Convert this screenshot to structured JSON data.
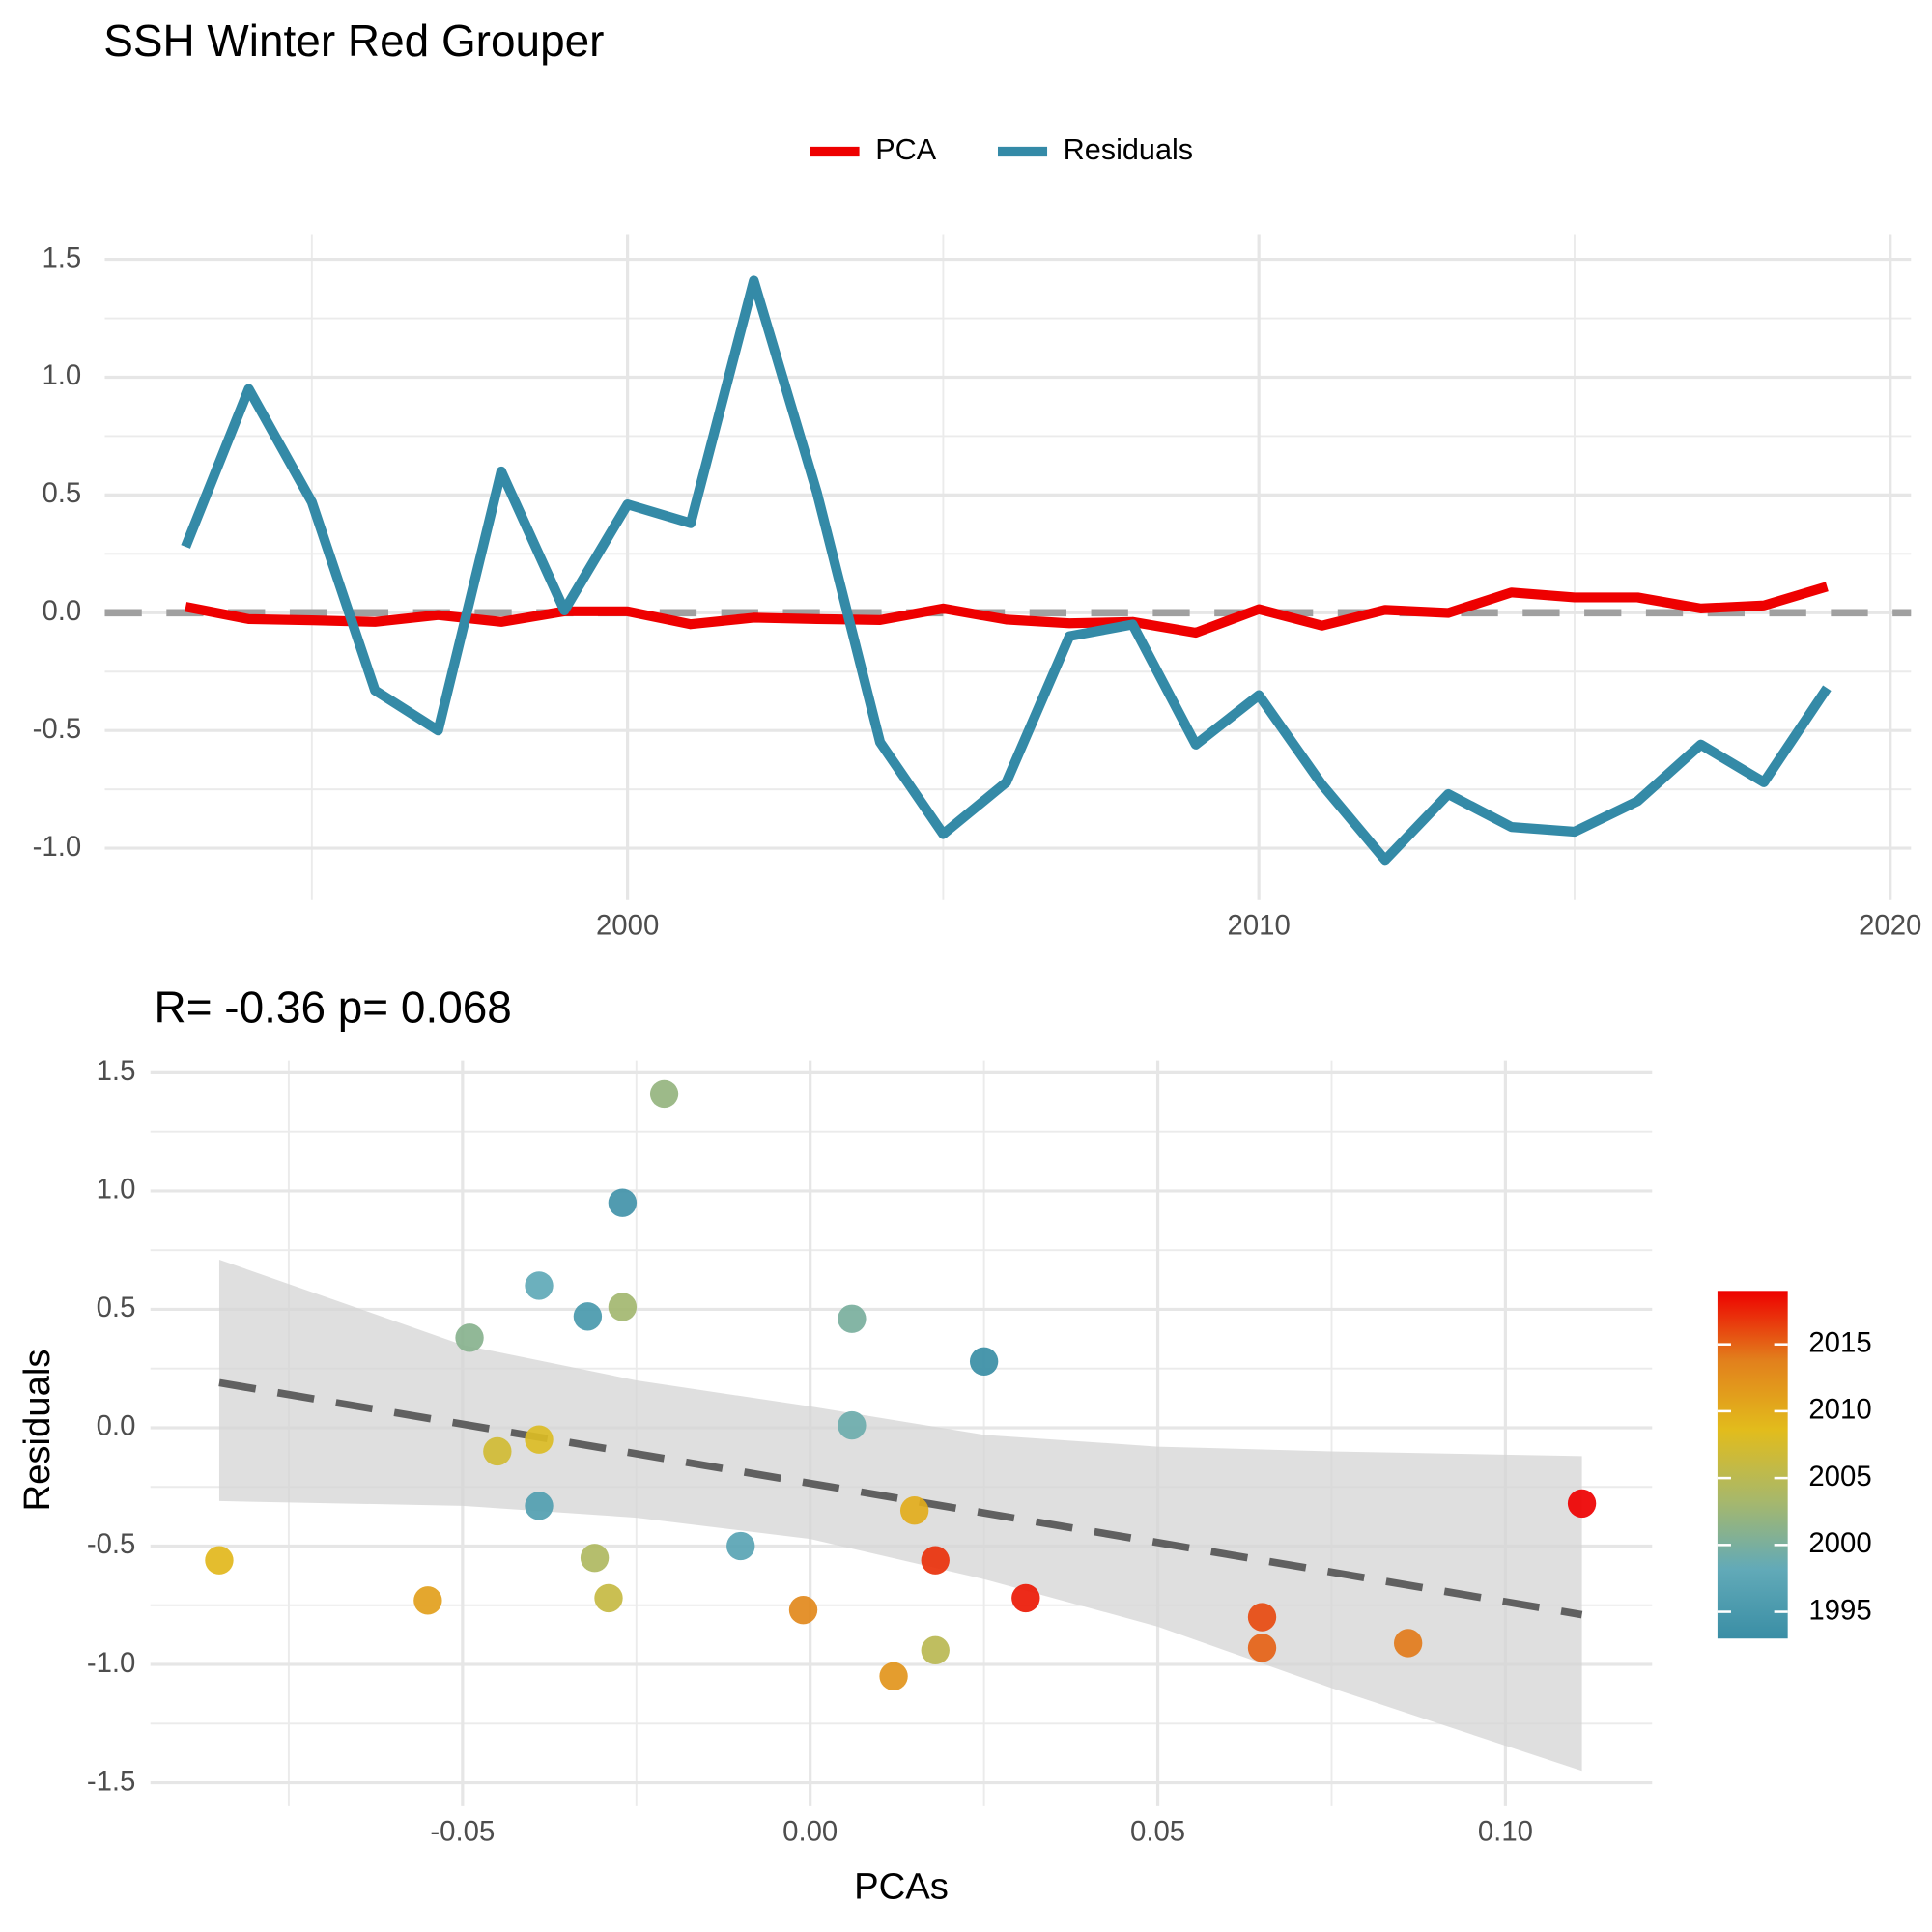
{
  "chart_data": [
    {
      "type": "line",
      "title": "SSH Winter Red Grouper",
      "x": [
        1993,
        1994,
        1995,
        1996,
        1997,
        1998,
        1999,
        2000,
        2001,
        2002,
        2003,
        2004,
        2005,
        2006,
        2007,
        2008,
        2009,
        2010,
        2011,
        2012,
        2013,
        2014,
        2015,
        2016,
        2017,
        2018,
        2019
      ],
      "series": [
        {
          "name": "PCA",
          "color": "#ee0000",
          "values": [
            0.025,
            -0.027,
            -0.032,
            -0.039,
            -0.01,
            -0.039,
            0.006,
            0.006,
            -0.049,
            -0.021,
            -0.027,
            -0.031,
            0.018,
            -0.029,
            -0.045,
            -0.039,
            -0.085,
            0.015,
            -0.055,
            0.012,
            -0.001,
            0.086,
            0.065,
            0.065,
            0.018,
            0.031,
            0.111
          ]
        },
        {
          "name": "Residuals",
          "color": "#348aa7",
          "values": [
            0.28,
            0.95,
            0.47,
            -0.33,
            -0.5,
            0.6,
            0.01,
            0.46,
            0.38,
            1.41,
            0.51,
            -0.55,
            -0.94,
            -0.72,
            -0.1,
            -0.05,
            -0.56,
            -0.35,
            -0.73,
            -1.05,
            -0.77,
            -0.91,
            -0.93,
            -0.8,
            -0.56,
            -0.72,
            -0.32
          ]
        }
      ],
      "xlim": [
        1991.72,
        2020.33
      ],
      "xticks": [
        2000,
        2010,
        2020
      ],
      "ylim": [
        -1.22,
        1.607
      ],
      "yticks": [
        {
          "value": -1,
          "label": "-1.0"
        },
        -0.5,
        {
          "value": 0,
          "label": "0.0"
        },
        0.5,
        {
          "value": 1,
          "label": "1.0"
        },
        1.5
      ],
      "hline": 0,
      "grid": true,
      "legend": "top"
    },
    {
      "type": "scatter",
      "subtitle": "R= -0.36  p= 0.068",
      "x_label": "PCAs",
      "y_label": "Residuals",
      "x": [
        0.025,
        -0.027,
        -0.032,
        -0.039,
        -0.01,
        -0.039,
        0.006,
        0.006,
        -0.049,
        -0.021,
        -0.027,
        -0.031,
        0.018,
        -0.029,
        -0.045,
        -0.039,
        -0.085,
        0.015,
        -0.055,
        0.012,
        -0.001,
        0.086,
        0.065,
        0.065,
        0.018,
        0.031,
        0.111
      ],
      "values": [
        0.28,
        0.95,
        0.47,
        -0.33,
        -0.5,
        0.6,
        0.01,
        0.46,
        0.38,
        1.41,
        0.51,
        -0.55,
        -0.94,
        -0.72,
        -0.1,
        -0.05,
        -0.56,
        -0.35,
        -0.73,
        -1.05,
        -0.77,
        -0.91,
        -0.93,
        -0.8,
        -0.56,
        -0.72,
        -0.32
      ],
      "color_values": [
        1993,
        1994,
        1995,
        1996,
        1997,
        1998,
        1999,
        2000,
        2001,
        2002,
        2003,
        2004,
        2005,
        2006,
        2007,
        2008,
        2009,
        2010,
        2011,
        2012,
        2013,
        2014,
        2015,
        2016,
        2017,
        2018,
        2019
      ],
      "colorscale": [
        "#3a8ea5",
        "#62aab8",
        "#a8b86a",
        "#e2bc1c",
        "#e2801c",
        "#ee0000"
      ],
      "colorbar_lim": [
        1993,
        2019
      ],
      "colorbar_ticks": [
        1995,
        2000,
        2005,
        2010,
        2015
      ],
      "fit": {
        "x": [
          -0.085,
          0.111
        ],
        "values": [
          0.19,
          -0.79
        ]
      },
      "band": {
        "x": [
          -0.085,
          -0.05,
          -0.025,
          0,
          0.025,
          0.05,
          0.075,
          0.111
        ],
        "upper": [
          0.71,
          0.35,
          0.2,
          0.09,
          -0.03,
          -0.08,
          -0.1,
          -0.12
        ],
        "lower": [
          -0.31,
          -0.33,
          -0.38,
          -0.47,
          -0.64,
          -0.84,
          -1.1,
          -1.45
        ]
      },
      "xlim": [
        -0.0949,
        0.1211
      ],
      "xticks": [
        -0.05,
        {
          "value": 0,
          "label": "0.00"
        },
        0.05,
        {
          "value": 0.1,
          "label": "0.10"
        }
      ],
      "ylim": [
        -1.599,
        1.552
      ],
      "yticks": [
        -1.5,
        {
          "value": -1,
          "label": "-1.0"
        },
        -0.5,
        {
          "value": 0,
          "label": "0.0"
        },
        0.5,
        {
          "value": 1,
          "label": "1.0"
        },
        1.5
      ],
      "grid": true
    }
  ]
}
